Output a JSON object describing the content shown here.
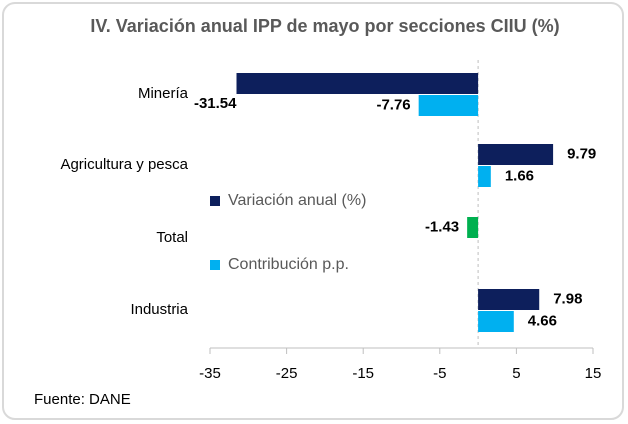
{
  "chart_data": {
    "type": "hbar",
    "title": "IV. Variación anual IPP de mayo por secciones CIIU (%)",
    "categories": [
      "Minería",
      "Agricultura y pesca",
      "Total",
      "Industria"
    ],
    "series": [
      {
        "name": "Variación anual (%)",
        "color": "#0d1f5c",
        "colors": [
          "#0d1f5c",
          "#0d1f5c",
          "#00b050",
          "#0d1f5c"
        ],
        "values": [
          -31.54,
          9.79,
          -1.43,
          7.98
        ]
      },
      {
        "name": "Contribución p.p.",
        "color": "#00b0f0",
        "values": [
          -7.76,
          1.66,
          null,
          4.66
        ]
      }
    ],
    "xlim": [
      -35,
      15
    ],
    "xticks": [
      -35,
      -25,
      -15,
      -5,
      5,
      15
    ],
    "source": "Fuente: DANE"
  }
}
